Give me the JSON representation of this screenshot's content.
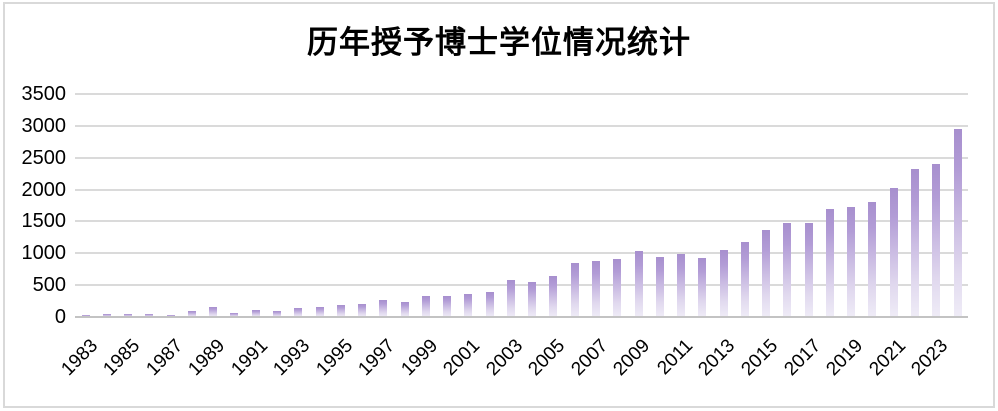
{
  "chart_data": {
    "type": "bar",
    "title": "历年授予博士学位情况统计",
    "xlabel": "",
    "ylabel": "",
    "legend": "none",
    "grid": "horizontal",
    "ylim": [
      0,
      3500
    ],
    "yticks": [
      0,
      500,
      1000,
      1500,
      2000,
      2500,
      3000,
      3500
    ],
    "categories": [
      "1983",
      "1984",
      "1985",
      "1986",
      "1987",
      "1988",
      "1989",
      "1990",
      "1991",
      "1992",
      "1993",
      "1994",
      "1995",
      "1996",
      "1997",
      "1998",
      "1999",
      "2000",
      "2001",
      "2002",
      "2003",
      "2004",
      "2005",
      "2006",
      "2007",
      "2008",
      "2009",
      "2010",
      "2011",
      "2012",
      "2013",
      "2014",
      "2015",
      "2016",
      "2017",
      "2018",
      "2019",
      "2020",
      "2021",
      "2022",
      "2023",
      "2024"
    ],
    "values": [
      25,
      50,
      45,
      50,
      30,
      100,
      160,
      60,
      115,
      90,
      135,
      155,
      190,
      210,
      260,
      230,
      330,
      325,
      365,
      400,
      580,
      555,
      640,
      840,
      885,
      905,
      1030,
      940,
      990,
      925,
      1050,
      1175,
      1365,
      1470,
      1480,
      1690,
      1720,
      1810,
      2020,
      2330,
      2400,
      2945
    ],
    "x_tick_labels": [
      "1983",
      "1985",
      "1987",
      "1989",
      "1991",
      "1993",
      "1995",
      "1997",
      "1999",
      "2001",
      "2003",
      "2005",
      "2007",
      "2009",
      "2011",
      "2013",
      "2015",
      "2017",
      "2019",
      "2021",
      "2023"
    ],
    "colors": {
      "bar_gradient_top": "#a78fce",
      "bar_gradient_bottom": "#efecf7",
      "gridline": "#dadada",
      "axis_line": "#c3c3c3",
      "text": "#000000",
      "frame_border": "#d9d9d9",
      "background": "#ffffff"
    }
  }
}
